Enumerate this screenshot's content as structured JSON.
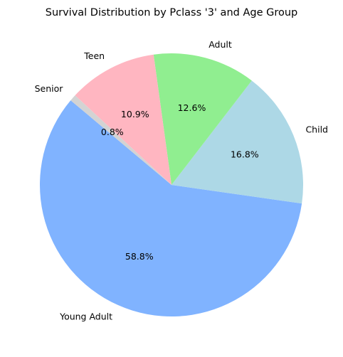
{
  "chart_data": {
    "type": "pie",
    "title": "Survival Distribution by Pclass '3' and Age Group",
    "slices": [
      {
        "label": "Young Adult",
        "value": 58.8,
        "pct_label": "58.8%",
        "color": "#80b3ff"
      },
      {
        "label": "Child",
        "value": 16.8,
        "pct_label": "16.8%",
        "color": "#add8e6"
      },
      {
        "label": "Adult",
        "value": 12.6,
        "pct_label": "12.6%",
        "color": "#90ee90"
      },
      {
        "label": "Teen",
        "value": 10.9,
        "pct_label": "10.9%",
        "color": "#ffb6c1"
      },
      {
        "label": "Senior",
        "value": 0.8,
        "pct_label": "0.8%",
        "color": "#d3d3d3"
      }
    ],
    "start_angle_deg": 140,
    "direction": "counterclockwise"
  }
}
